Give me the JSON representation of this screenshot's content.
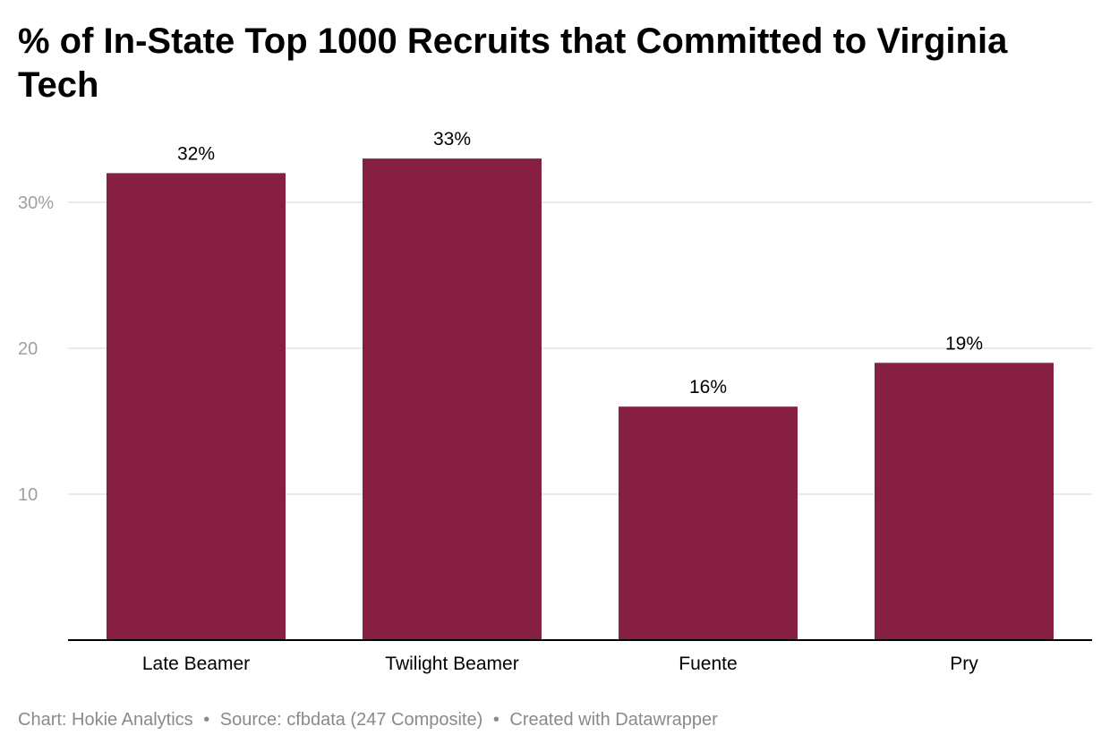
{
  "title": "% of In-State Top 1000 Recruits that Committed to Virginia Tech",
  "footer": {
    "chart_credit": "Chart: Hokie Analytics",
    "separator": "•",
    "source": "Source: cfbdata (247 Composite)",
    "created_with": "Created with Datawrapper"
  },
  "colors": {
    "bar": "#861f41",
    "gridline": "#e3e3e3",
    "axis_line": "#000000",
    "tick_label": "#a0a0a0",
    "data_label": "#000000",
    "category_label": "#000000"
  },
  "chart_data": {
    "type": "bar",
    "title": "% of In-State Top 1000 Recruits that Committed to Virginia Tech",
    "categories": [
      "Late Beamer",
      "Twilight Beamer",
      "Fuente",
      "Pry"
    ],
    "values": [
      32,
      33,
      16,
      19
    ],
    "data_labels": [
      "32%",
      "33%",
      "16%",
      "19%"
    ],
    "yticks": [
      10,
      20,
      30
    ],
    "ytick_labels": [
      "10",
      "20",
      "30%"
    ],
    "ylim": [
      0,
      33
    ],
    "xlabel": "",
    "ylabel": "",
    "grid": true,
    "legend": "none"
  }
}
